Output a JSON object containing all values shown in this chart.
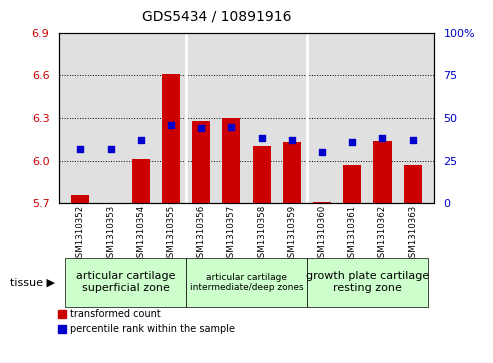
{
  "title": "GDS5434 / 10891916",
  "samples": [
    "GSM1310352",
    "GSM1310353",
    "GSM1310354",
    "GSM1310355",
    "GSM1310356",
    "GSM1310357",
    "GSM1310358",
    "GSM1310359",
    "GSM1310360",
    "GSM1310361",
    "GSM1310362",
    "GSM1310363"
  ],
  "transformed_count": [
    5.76,
    5.7,
    6.01,
    6.61,
    6.28,
    6.3,
    6.1,
    6.13,
    5.71,
    5.97,
    6.14,
    5.97
  ],
  "percentile_rank": [
    32,
    32,
    37,
    46,
    44,
    45,
    38,
    37,
    30,
    36,
    38,
    37
  ],
  "ylim_left": [
    5.7,
    6.9
  ],
  "ylim_right": [
    0,
    100
  ],
  "yticks_left": [
    5.7,
    6.0,
    6.3,
    6.6,
    6.9
  ],
  "yticks_right": [
    0,
    25,
    50,
    75,
    100
  ],
  "ytick_labels_right": [
    "0",
    "25",
    "50",
    "75",
    "100%"
  ],
  "bar_color": "#cc0000",
  "dot_color": "#0000cc",
  "baseline": 5.7,
  "grid_lines": [
    6.0,
    6.3,
    6.6,
    6.9
  ],
  "tissue_groups": [
    {
      "label": "articular cartilage\nsuperficial zone",
      "start": 0,
      "end": 4,
      "color": "#ccffcc",
      "fontsize": 8
    },
    {
      "label": "articular cartilage\nintermediate/deep zones",
      "start": 4,
      "end": 8,
      "color": "#ccffcc",
      "fontsize": 6.5
    },
    {
      "label": "growth plate cartilage\nresting zone",
      "start": 8,
      "end": 12,
      "color": "#ccffcc",
      "fontsize": 8
    }
  ],
  "tissue_label": "tissue",
  "legend_bar_label": "transformed count",
  "legend_dot_label": "percentile rank within the sample",
  "bar_width": 0.6,
  "bg_color_plot": "#e0e0e0",
  "bg_color_fig": "#ffffff",
  "group_separators": [
    4,
    8
  ]
}
